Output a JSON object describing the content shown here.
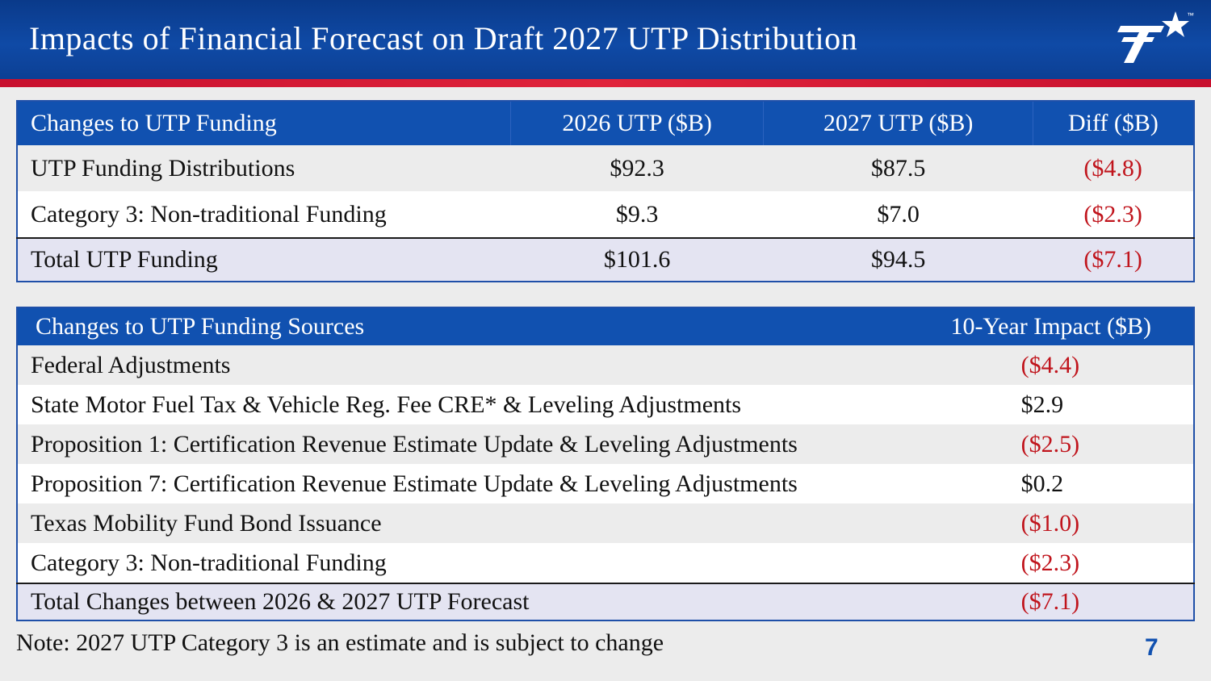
{
  "header": {
    "title": "Impacts of Financial Forecast on Draft 2027 UTP Distribution",
    "tm": "™"
  },
  "colors": {
    "header_blue": "#0f4aa6",
    "accent_red": "#c8102e",
    "negative_text": "#c0141c",
    "table_header": "#1151b0"
  },
  "table1": {
    "headers": [
      "Changes to UTP Funding",
      "2026 UTP ($B)",
      "2027 UTP ($B)",
      "Diff ($B)"
    ],
    "rows": [
      {
        "label": "UTP Funding Distributions",
        "v2026": "$92.3",
        "v2027": "$87.5",
        "diff": "($4.8)"
      },
      {
        "label": "Category 3: Non-traditional Funding",
        "v2026": "$9.3",
        "v2027": "$7.0",
        "diff": "($2.3)"
      }
    ],
    "total": {
      "label": "Total UTP Funding",
      "v2026": "$101.6",
      "v2027": "$94.5",
      "diff": "($7.1)"
    }
  },
  "table2": {
    "headers": [
      "Changes to UTP Funding Sources",
      "10-Year Impact ($B)"
    ],
    "rows": [
      {
        "label": "Federal Adjustments",
        "impact": "($4.4)"
      },
      {
        "label": "State Motor Fuel Tax & Vehicle Reg. Fee CRE* & Leveling Adjustments",
        "impact": "$2.9"
      },
      {
        "label": "Proposition 1: Certification Revenue Estimate Update & Leveling Adjustments",
        "impact": "($2.5)"
      },
      {
        "label": "Proposition 7: Certification Revenue Estimate Update & Leveling Adjustments",
        "impact": "$0.2"
      },
      {
        "label": "Texas Mobility Fund Bond Issuance",
        "impact": "($1.0)"
      },
      {
        "label": "Category 3: Non-traditional Funding",
        "impact": "($2.3)"
      }
    ],
    "total": {
      "label": "Total Changes between 2026 & 2027 UTP Forecast",
      "impact": "($7.1)"
    }
  },
  "footer": {
    "note": "Note: 2027 UTP Category 3 is an estimate and is subject to change",
    "page_number": "7"
  }
}
